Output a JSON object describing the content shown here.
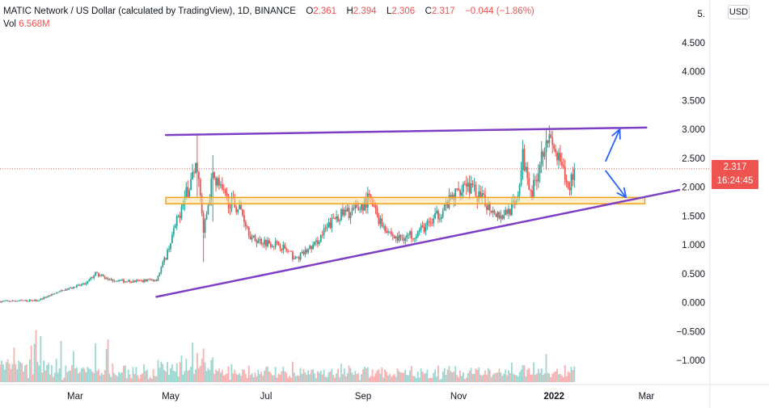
{
  "legend": {
    "title": "MATIC Network / US Dollar (calculated by TradingView), 1D, BINANCE",
    "open_label": "O",
    "open": "2.361",
    "high_label": "H",
    "high": "2.394",
    "low_label": "L",
    "low": "2.306",
    "close_label": "C",
    "close": "2.317",
    "change": "−0.044 (−1.86%)",
    "vol_label": "Vol",
    "vol": "6.568M"
  },
  "price_axis": {
    "currency_button": "USD",
    "current_price": "2.317",
    "countdown": "16:24:45"
  },
  "colors": {
    "up": "#26a69a",
    "down": "#ef5350",
    "trendline": "#7e3fc6",
    "zone_fill": "#ffe0a3",
    "zone_stroke": "#f7a21b",
    "arrow": "#2962ff"
  },
  "chart_data": {
    "type": "candlestick",
    "title": "MATIC Network / US Dollar (calculated by TradingView), 1D, BINANCE",
    "y_tick_labels": [
      "5.",
      "4.500",
      "4.000",
      "3.500",
      "3.000",
      "2.500",
      "2.000",
      "1.500",
      "1.000",
      "0.500",
      "0.000",
      "−0.500",
      "−1.000"
    ],
    "y_ticks": [
      5.0,
      4.5,
      4.0,
      3.5,
      3.0,
      2.5,
      2.0,
      1.5,
      1.0,
      0.5,
      0.0,
      -0.5,
      -1.0
    ],
    "ylim": [
      -1.1,
      5.1
    ],
    "x_tick_labels": [
      "Mar",
      "May",
      "Jul",
      "Sep",
      "Nov",
      "2022",
      "Mar"
    ],
    "x_tick_dates": [
      "2021-03-01",
      "2021-05-01",
      "2021-07-01",
      "2021-09-01",
      "2021-11-01",
      "2022-01-01",
      "2022-03-01"
    ],
    "xlim": [
      "2021-01-12",
      "2022-03-22"
    ],
    "grid": false,
    "price_path": [
      {
        "date": "2021-01-12",
        "price": 0.02
      },
      {
        "date": "2021-02-05",
        "price": 0.04
      },
      {
        "date": "2021-02-20",
        "price": 0.2
      },
      {
        "date": "2021-03-08",
        "price": 0.33
      },
      {
        "date": "2021-03-14",
        "price": 0.5
      },
      {
        "date": "2021-03-22",
        "price": 0.4
      },
      {
        "date": "2021-04-05",
        "price": 0.36
      },
      {
        "date": "2021-04-22",
        "price": 0.4
      },
      {
        "date": "2021-04-28",
        "price": 0.8
      },
      {
        "date": "2021-05-05",
        "price": 1.4
      },
      {
        "date": "2021-05-10",
        "price": 1.8
      },
      {
        "date": "2021-05-18",
        "price": 2.4
      },
      {
        "date": "2021-05-22",
        "price": 1.2
      },
      {
        "date": "2021-05-28",
        "price": 2.2
      },
      {
        "date": "2021-06-05",
        "price": 1.8
      },
      {
        "date": "2021-06-15",
        "price": 1.6
      },
      {
        "date": "2021-06-22",
        "price": 1.1
      },
      {
        "date": "2021-07-10",
        "price": 1.0
      },
      {
        "date": "2021-07-20",
        "price": 0.75
      },
      {
        "date": "2021-08-01",
        "price": 1.0
      },
      {
        "date": "2021-08-15",
        "price": 1.5
      },
      {
        "date": "2021-08-28",
        "price": 1.6
      },
      {
        "date": "2021-09-05",
        "price": 1.8
      },
      {
        "date": "2021-09-12",
        "price": 1.4
      },
      {
        "date": "2021-09-22",
        "price": 1.1
      },
      {
        "date": "2021-10-05",
        "price": 1.2
      },
      {
        "date": "2021-10-15",
        "price": 1.4
      },
      {
        "date": "2021-10-28",
        "price": 1.8
      },
      {
        "date": "2021-11-05",
        "price": 2.1
      },
      {
        "date": "2021-11-15",
        "price": 1.8
      },
      {
        "date": "2021-11-28",
        "price": 1.5
      },
      {
        "date": "2021-12-08",
        "price": 1.7
      },
      {
        "date": "2021-12-12",
        "price": 2.5
      },
      {
        "date": "2021-12-18",
        "price": 1.9
      },
      {
        "date": "2021-12-27",
        "price": 2.9
      },
      {
        "date": "2022-01-05",
        "price": 2.4
      },
      {
        "date": "2022-01-10",
        "price": 1.95
      },
      {
        "date": "2022-01-14",
        "price": 2.317
      }
    ],
    "spikes": [
      {
        "date": "2021-05-18",
        "high": 2.9,
        "low": 1.8
      },
      {
        "date": "2021-05-22",
        "high": 1.5,
        "low": 0.7
      },
      {
        "date": "2021-05-28",
        "high": 2.55,
        "low": 1.4
      },
      {
        "date": "2021-12-27",
        "high": 3.0,
        "low": 2.3
      }
    ],
    "current_price": 2.317,
    "annotations": [
      {
        "kind": "upper-trendline",
        "from": {
          "date": "2021-04-28",
          "price": 2.9
        },
        "to": {
          "date": "2022-03-01",
          "price": 3.03
        }
      },
      {
        "kind": "lower-trendline",
        "from": {
          "date": "2021-04-22",
          "price": 0.1
        },
        "to": {
          "date": "2022-03-22",
          "price": 1.95
        }
      },
      {
        "kind": "support-zone",
        "from_date": "2021-04-28",
        "to_date": "2022-02-28",
        "top": 1.82,
        "bottom": 1.71
      },
      {
        "kind": "arrow-up",
        "from": {
          "date": "2022-02-03",
          "price": 2.45
        },
        "to": {
          "date": "2022-02-12",
          "price": 3.0
        }
      },
      {
        "kind": "arrow-down",
        "from": {
          "date": "2022-02-03",
          "price": 2.28
        },
        "to": {
          "date": "2022-02-16",
          "price": 1.82
        }
      }
    ]
  }
}
